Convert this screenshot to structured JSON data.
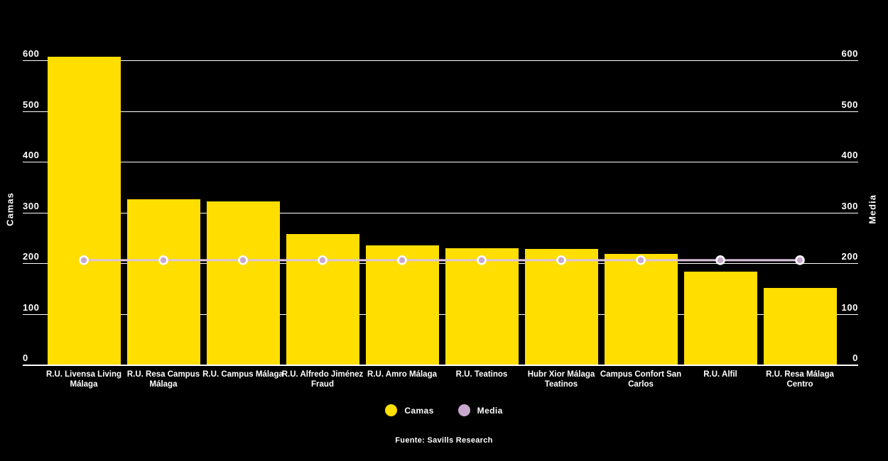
{
  "chart_data": {
    "type": "bar",
    "title": "",
    "categories": [
      "R.U. Livensa Living Málaga",
      "R.U. Resa Campus Málaga",
      "R.U. Campus Málaga",
      "R.U. Alfredo Jiménez Fraud",
      "R.U. Amro Málaga",
      "R.U. Teatinos",
      "Hubr Xior Málaga Teatinos",
      "Campus Confort San Carlos",
      "R.U. Alfil",
      "R.U. Resa Málaga Centro"
    ],
    "category_display": [
      "R.U. Livensa Living\nMálaga",
      "R.U. Resa Campus\nMálaga",
      "R.U. Campus Málaga",
      "R.U. Alfredo Jiménez\nFraud",
      "R.U. Amro Málaga",
      "R.U. Teatinos",
      "Hubr Xior Málaga\nTeatinos",
      "Campus Confort San\nCarlos",
      "R.U. Alfil",
      "R.U. Resa Málaga\nCentro"
    ],
    "series": [
      {
        "name": "Camas",
        "type": "bar",
        "color": "#FFDE00",
        "values": [
          608,
          326,
          322,
          257,
          235,
          230,
          228,
          219,
          184,
          151
        ]
      },
      {
        "name": "Media",
        "type": "line",
        "color": "#C9A8CE",
        "line_color": "#DEC4DE",
        "marker_ring_color": "#FFFFFF",
        "values": [
          206,
          206,
          206,
          206,
          206,
          206,
          206,
          206,
          206,
          206
        ]
      }
    ],
    "ylabel_left": "Camas",
    "ylabel_right": "Media",
    "y_ticks": [
      0,
      100,
      200,
      300,
      400,
      500,
      600
    ],
    "ylim": [
      0,
      600
    ],
    "grid": true,
    "legend_position": "bottom"
  },
  "legend": {
    "items": [
      "Camas",
      "Media"
    ]
  },
  "footer": {
    "source": "Fuente: Savills Research"
  },
  "colors": {
    "background": "#000000",
    "grid": "#FFFFFF",
    "text": "#FFFFFF",
    "bar": "#FFDE00",
    "media_dot": "#C9A8CE",
    "media_line": "#DEC4DE"
  }
}
